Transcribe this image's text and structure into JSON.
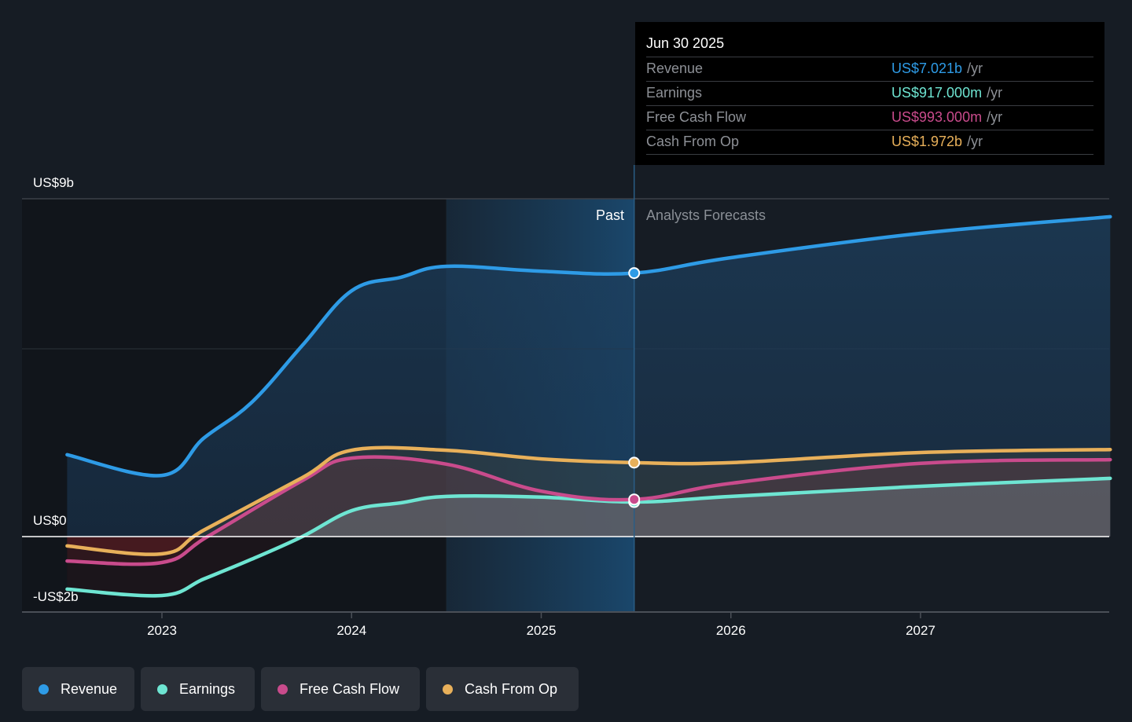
{
  "chart_data": {
    "type": "area",
    "title": "",
    "xlabel": "",
    "ylabel": "",
    "ylim": [
      -2,
      9
    ],
    "xlim": [
      2022.5,
      2028.0
    ],
    "y_tick_labels": [
      {
        "value": 9,
        "label": "US$9b"
      },
      {
        "value": 0,
        "label": "US$0"
      },
      {
        "value": -2,
        "label": "-US$2b"
      }
    ],
    "x_ticks": [
      {
        "value": 2023,
        "label": "2023"
      },
      {
        "value": 2024,
        "label": "2024"
      },
      {
        "value": 2025,
        "label": "2025"
      },
      {
        "value": 2026,
        "label": "2026"
      },
      {
        "value": 2027,
        "label": "2027"
      }
    ],
    "grid": true,
    "past_forecast_divider": 2025.49,
    "highlight_start": 2024.5,
    "past_label": "Past",
    "forecast_label": "Analysts Forecasts",
    "legend_position": "bottom-left",
    "series": [
      {
        "name": "Revenue",
        "key": "revenue",
        "color": "#2e9be6",
        "x": [
          2022.5,
          2023.0,
          2023.22,
          2023.47,
          2023.74,
          2024.0,
          2024.26,
          2024.5,
          2025.0,
          2025.49,
          2026.0,
          2027.0,
          2028.0
        ],
        "values": [
          2.18,
          1.63,
          2.62,
          3.56,
          5.09,
          6.55,
          6.91,
          7.2,
          7.07,
          7.02,
          7.43,
          8.08,
          8.52
        ]
      },
      {
        "name": "Earnings",
        "key": "earnings",
        "color": "#6ee5d2",
        "x": [
          2022.5,
          2023.0,
          2023.22,
          2023.47,
          2023.74,
          2024.0,
          2024.26,
          2024.5,
          2025.0,
          2025.49,
          2026.0,
          2027.0,
          2028.0
        ],
        "values": [
          -1.4,
          -1.57,
          -1.13,
          -0.61,
          0.0,
          0.69,
          0.9,
          1.07,
          1.05,
          0.92,
          1.07,
          1.34,
          1.55
        ]
      },
      {
        "name": "Free Cash Flow",
        "key": "fcf",
        "color": "#c94b8c",
        "x": [
          2022.5,
          2023.0,
          2023.24,
          2023.74,
          2024.0,
          2024.5,
          2025.0,
          2025.49,
          2026.0,
          2027.0,
          2028.0
        ],
        "values": [
          -0.65,
          -0.69,
          0.0,
          1.49,
          2.09,
          1.93,
          1.21,
          0.99,
          1.42,
          1.95,
          2.05
        ]
      },
      {
        "name": "Cash From Op",
        "key": "cfo",
        "color": "#e8b05a",
        "x": [
          2022.5,
          2023.0,
          2023.22,
          2023.74,
          2024.0,
          2024.5,
          2025.0,
          2025.49,
          2026.0,
          2027.0,
          2028.0
        ],
        "values": [
          -0.25,
          -0.46,
          0.17,
          1.57,
          2.3,
          2.3,
          2.07,
          1.97,
          1.97,
          2.24,
          2.32
        ]
      }
    ]
  },
  "tooltip": {
    "date": "Jun 30 2025",
    "rows": [
      {
        "name": "Revenue",
        "value": "US$7.021b",
        "unit": "/yr",
        "color": "#2e9be6"
      },
      {
        "name": "Earnings",
        "value": "US$917.000m",
        "unit": "/yr",
        "color": "#6ee5d2"
      },
      {
        "name": "Free Cash Flow",
        "value": "US$993.000m",
        "unit": "/yr",
        "color": "#c94b8c"
      },
      {
        "name": "Cash From Op",
        "value": "US$1.972b",
        "unit": "/yr",
        "color": "#e8b05a"
      }
    ]
  },
  "legend": [
    {
      "label": "Revenue",
      "color": "#2e9be6"
    },
    {
      "label": "Earnings",
      "color": "#6ee5d2"
    },
    {
      "label": "Free Cash Flow",
      "color": "#c94b8c"
    },
    {
      "label": "Cash From Op",
      "color": "#e8b05a"
    }
  ]
}
